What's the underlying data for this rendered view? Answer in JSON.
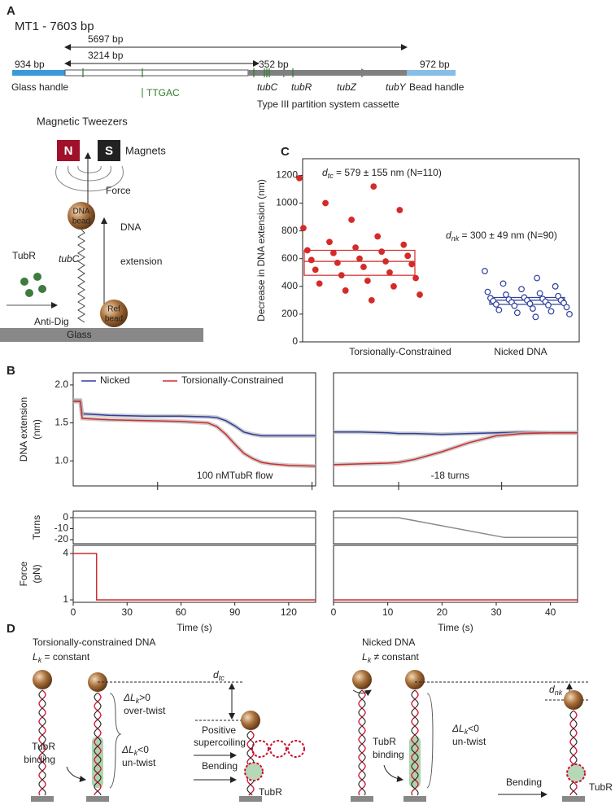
{
  "panel_labels": {
    "a": "A",
    "b": "B",
    "c": "C",
    "d": "D"
  },
  "panel_a": {
    "title": "MT1 - 7603 bp",
    "spans": {
      "total": "5697 bp",
      "to_cassette": "3214 bp",
      "glass_handle": "934 bp",
      "gap": "352 bp",
      "bead_handle": "972 bp"
    },
    "features": {
      "glass_handle": "Glass handle",
      "site": "TTGAC",
      "tubC": "tubC",
      "tubR": "tubR",
      "tubZ": "tubZ",
      "tubY": "tubY",
      "bead_handle": "Bead handle",
      "cassette": "Type III partition system cassette"
    },
    "tweezers": {
      "title": "Magnetic Tweezers",
      "north": "N",
      "south": "S",
      "magnets": "Magnets",
      "force": "Force",
      "dna_bead": [
        "DNA",
        "bead"
      ],
      "dna_extension": [
        "DNA",
        "extension"
      ],
      "tubC": "tubC",
      "tubR": "TubR",
      "ref_bead": [
        "Ref",
        "bead"
      ],
      "anti_dig": "Anti-Dig",
      "glass": "Glass"
    }
  },
  "chart_data": [
    {
      "type": "strip",
      "ylabel": "Decrease in DNA extension (nm)",
      "ylim": [
        0,
        1320
      ],
      "yticks": [
        0,
        200,
        400,
        600,
        800,
        1000,
        1200
      ],
      "categories": [
        "Torsionally-Constrained",
        "Nicked DNA"
      ],
      "series": [
        {
          "color": "#d42a2a",
          "marker": "filled",
          "box": [
            480,
            580,
            660
          ],
          "values": [
            1180,
            1120,
            1000,
            950,
            880,
            820,
            760,
            720,
            700,
            680,
            660,
            650,
            640,
            620,
            600,
            590,
            580,
            570,
            560,
            540,
            520,
            500,
            480,
            460,
            440,
            420,
            400,
            370,
            340,
            300
          ]
        },
        {
          "color": "#2e3f9e",
          "marker": "open",
          "box": [
            270,
            300,
            320
          ],
          "values": [
            510,
            460,
            420,
            400,
            380,
            360,
            350,
            340,
            330,
            320,
            315,
            310,
            305,
            300,
            300,
            295,
            290,
            285,
            280,
            275,
            270,
            265,
            260,
            250,
            240,
            230,
            220,
            210,
            200,
            180
          ]
        }
      ],
      "annotations": [
        {
          "main": "d",
          "sub": "tc",
          "rest": " = 579 ± 155 nm (N=110)"
        },
        {
          "main": "d",
          "sub": "nk",
          "rest": " = 300 ± 49 nm (N=90)"
        }
      ]
    },
    {
      "type": "line",
      "ylabel": [
        "DNA extension",
        "(nm)"
      ],
      "xlim": [
        0,
        135
      ],
      "ylim": [
        0.67,
        2.16
      ],
      "yticks": [
        {
          "value": 1,
          "label": "1.0"
        },
        {
          "value": 1.5,
          "label": "1.5"
        },
        {
          "value": 2,
          "label": "2.0"
        }
      ],
      "x": [
        0,
        4,
        5,
        20,
        40,
        60,
        75,
        80,
        85,
        90,
        95,
        100,
        105,
        110,
        120,
        135
      ],
      "series": [
        {
          "name": "Nicked",
          "color": "#2e3f9e",
          "values": [
            1.8,
            1.8,
            1.62,
            1.6,
            1.59,
            1.59,
            1.58,
            1.57,
            1.53,
            1.46,
            1.38,
            1.35,
            1.33,
            1.33,
            1.33,
            1.33
          ]
        },
        {
          "name": "Torsionally-Constrained",
          "color": "#d42a2a",
          "values": [
            1.78,
            1.78,
            1.56,
            1.54,
            1.53,
            1.52,
            1.5,
            1.45,
            1.35,
            1.22,
            1.1,
            1.03,
            0.98,
            0.96,
            0.94,
            0.93
          ]
        }
      ],
      "annotation": "100 nMTubR flow",
      "annotation_range": [
        47,
        133
      ]
    },
    {
      "type": "line",
      "xlim": [
        0,
        45
      ],
      "ylim": [
        0.67,
        2.16
      ],
      "x": [
        0,
        5,
        10,
        12,
        15,
        20,
        25,
        30,
        35,
        40,
        45
      ],
      "series": [
        {
          "color": "#2e3f9e",
          "values": [
            1.38,
            1.38,
            1.37,
            1.36,
            1.36,
            1.35,
            1.36,
            1.37,
            1.38,
            1.37,
            1.37
          ]
        },
        {
          "color": "#d42a2a",
          "values": [
            0.95,
            0.96,
            0.97,
            0.98,
            1.02,
            1.12,
            1.24,
            1.33,
            1.36,
            1.37,
            1.37
          ]
        }
      ],
      "annotation": "-18 turns",
      "annotation_range": [
        12,
        31
      ]
    },
    {
      "type": "line",
      "ylabel": "Turns",
      "xlim": [
        0,
        135
      ],
      "ylim": [
        -23.7,
        5.9
      ],
      "yticks": [
        0,
        -10,
        -20
      ],
      "x": [
        0,
        135
      ],
      "series": [
        {
          "color": "#888888",
          "values": [
            0,
            0
          ]
        }
      ]
    },
    {
      "type": "line",
      "xlim": [
        0,
        45
      ],
      "ylim": [
        -23.7,
        5.9
      ],
      "x": [
        0,
        12,
        31.5,
        45
      ],
      "series": [
        {
          "color": "#888888",
          "values": [
            0,
            0,
            -18,
            -18
          ]
        }
      ]
    },
    {
      "type": "line",
      "ylabel": [
        "Force",
        "(pN)"
      ],
      "log_scale": true,
      "xlim": [
        0,
        135
      ],
      "ylim": [
        0.93,
        5.1
      ],
      "yticks": [
        1,
        4
      ],
      "xticks": [
        0,
        30,
        60,
        90,
        120
      ],
      "xlabel": "Time (s)",
      "x": [
        0,
        13,
        13,
        135
      ],
      "series": [
        {
          "color": "#d42a2a",
          "values": [
            4,
            4,
            1,
            1
          ]
        }
      ]
    },
    {
      "type": "line",
      "log_scale": true,
      "xlim": [
        0,
        45
      ],
      "ylim": [
        0.93,
        5.1
      ],
      "xticks": [
        0,
        10,
        20,
        30,
        40
      ],
      "xlabel": "Time (s)",
      "x": [
        0,
        45
      ],
      "series": [
        {
          "color": "#d42a2a",
          "values": [
            1,
            1
          ]
        }
      ]
    }
  ],
  "panel_d": {
    "left": {
      "title": "Torsionally-constrained DNA",
      "lk": {
        "main": "L",
        "sub": "k",
        "rest": " = constant"
      },
      "d": {
        "main": "d",
        "sub": "tc"
      },
      "over": {
        "main": "ΔL",
        "sub": "k",
        "rest": ">0"
      },
      "over_text": "over-twist",
      "binding": [
        "TubR",
        "binding"
      ],
      "under": {
        "main": "ΔL",
        "sub": "k",
        "rest": "<0"
      },
      "under_text": "un-twist",
      "supercoiling": [
        "Positive",
        "supercoiling"
      ],
      "bending": "Bending",
      "tubr": "TubR"
    },
    "right": {
      "title": "Nicked DNA",
      "lk": {
        "main": "L",
        "sub": "k",
        "rest": " ≠ constant"
      },
      "d": {
        "main": "d",
        "sub": "nk"
      },
      "under": {
        "main": "ΔL",
        "sub": "k",
        "rest": "<0"
      },
      "under_text": "un-twist",
      "binding": [
        "TubR",
        "binding"
      ],
      "bending": "Bending",
      "tubr": "TubR"
    }
  }
}
